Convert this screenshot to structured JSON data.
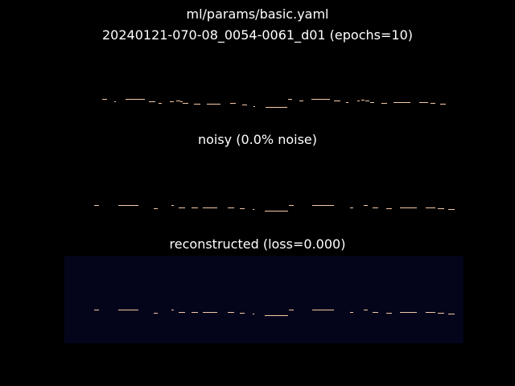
{
  "figure": {
    "title_line1": "ml/params/basic.yaml",
    "title_line2": "20240121-070-08_0054-0061_d01 (epochs=10)"
  },
  "colors": {
    "background": "#000000",
    "recon_panel_bg": "#04041a",
    "note_color": "#f4c9a8",
    "text": "#ffffff"
  },
  "panels": [
    {
      "id": "original",
      "title": ""
    },
    {
      "id": "noisy",
      "title": "noisy (0.0% noise)"
    },
    {
      "id": "reconstructed",
      "title": "reconstructed (loss=0.000)"
    }
  ],
  "chart_data": [
    {
      "type": "piano-roll",
      "title": "",
      "xlabel": "",
      "ylabel": "",
      "notes": [
        {
          "start": 47,
          "dur": 6,
          "pitch": 73
        },
        {
          "start": 62,
          "dur": 2,
          "pitch": 70
        },
        {
          "start": 76,
          "dur": 24,
          "pitch": 73
        },
        {
          "start": 105,
          "dur": 8,
          "pitch": 70
        },
        {
          "start": 117,
          "dur": 4,
          "pitch": 68
        },
        {
          "start": 131,
          "dur": 5,
          "pitch": 70
        },
        {
          "start": 139,
          "dur": 5,
          "pitch": 71
        },
        {
          "start": 144,
          "dur": 3,
          "pitch": 70
        },
        {
          "start": 147,
          "dur": 7,
          "pitch": 68
        },
        {
          "start": 161,
          "dur": 8,
          "pitch": 67
        },
        {
          "start": 177,
          "dur": 17,
          "pitch": 67
        },
        {
          "start": 206,
          "dur": 7,
          "pitch": 68
        },
        {
          "start": 221,
          "dur": 6,
          "pitch": 66
        },
        {
          "start": 235,
          "dur": 2,
          "pitch": 64
        },
        {
          "start": 250,
          "dur": 27,
          "pitch": 63
        },
        {
          "start": 278,
          "dur": 5,
          "pitch": 73
        },
        {
          "start": 292,
          "dur": 5,
          "pitch": 71
        },
        {
          "start": 307,
          "dur": 23,
          "pitch": 73
        },
        {
          "start": 335,
          "dur": 8,
          "pitch": 71
        },
        {
          "start": 350,
          "dur": 3,
          "pitch": 69
        },
        {
          "start": 364,
          "dur": 3,
          "pitch": 71
        },
        {
          "start": 369,
          "dur": 4,
          "pitch": 72
        },
        {
          "start": 374,
          "dur": 5,
          "pitch": 71
        },
        {
          "start": 380,
          "dur": 5,
          "pitch": 69
        },
        {
          "start": 394,
          "dur": 7,
          "pitch": 68
        },
        {
          "start": 409,
          "dur": 21,
          "pitch": 69
        },
        {
          "start": 441,
          "dur": 11,
          "pitch": 69
        },
        {
          "start": 455,
          "dur": 6,
          "pitch": 68
        },
        {
          "start": 467,
          "dur": 7,
          "pitch": 67
        }
      ]
    },
    {
      "type": "piano-roll",
      "title": "noisy (0.0% noise)",
      "xlabel": "",
      "ylabel": "",
      "notes": [
        {
          "start": 37,
          "dur": 6,
          "pitch": 73
        },
        {
          "start": 67,
          "dur": 25,
          "pitch": 73
        },
        {
          "start": 111,
          "dur": 5,
          "pitch": 69
        },
        {
          "start": 133,
          "dur": 3,
          "pitch": 73
        },
        {
          "start": 142,
          "dur": 8,
          "pitch": 70
        },
        {
          "start": 158,
          "dur": 8,
          "pitch": 70
        },
        {
          "start": 172,
          "dur": 18,
          "pitch": 70
        },
        {
          "start": 203,
          "dur": 8,
          "pitch": 70
        },
        {
          "start": 218,
          "dur": 6,
          "pitch": 69
        },
        {
          "start": 234,
          "dur": 2,
          "pitch": 68
        },
        {
          "start": 249,
          "dur": 29,
          "pitch": 66
        },
        {
          "start": 279,
          "dur": 6,
          "pitch": 73
        },
        {
          "start": 308,
          "dur": 27,
          "pitch": 73
        },
        {
          "start": 355,
          "dur": 4,
          "pitch": 70
        },
        {
          "start": 372,
          "dur": 5,
          "pitch": 73
        },
        {
          "start": 383,
          "dur": 7,
          "pitch": 70
        },
        {
          "start": 400,
          "dur": 7,
          "pitch": 69
        },
        {
          "start": 417,
          "dur": 21,
          "pitch": 70
        },
        {
          "start": 449,
          "dur": 12,
          "pitch": 70
        },
        {
          "start": 464,
          "dur": 8,
          "pitch": 69
        },
        {
          "start": 477,
          "dur": 8,
          "pitch": 68
        }
      ]
    },
    {
      "type": "piano-roll",
      "title": "reconstructed (loss=0.000)",
      "xlabel": "",
      "ylabel": "",
      "notes": [
        {
          "start": 37,
          "dur": 6,
          "pitch": 73
        },
        {
          "start": 67,
          "dur": 25,
          "pitch": 73
        },
        {
          "start": 111,
          "dur": 5,
          "pitch": 69
        },
        {
          "start": 133,
          "dur": 3,
          "pitch": 73
        },
        {
          "start": 142,
          "dur": 8,
          "pitch": 70
        },
        {
          "start": 158,
          "dur": 8,
          "pitch": 70
        },
        {
          "start": 172,
          "dur": 18,
          "pitch": 70
        },
        {
          "start": 203,
          "dur": 8,
          "pitch": 70
        },
        {
          "start": 218,
          "dur": 6,
          "pitch": 69
        },
        {
          "start": 234,
          "dur": 2,
          "pitch": 68
        },
        {
          "start": 249,
          "dur": 29,
          "pitch": 66
        },
        {
          "start": 279,
          "dur": 6,
          "pitch": 73
        },
        {
          "start": 308,
          "dur": 27,
          "pitch": 73
        },
        {
          "start": 355,
          "dur": 4,
          "pitch": 70
        },
        {
          "start": 372,
          "dur": 5,
          "pitch": 73
        },
        {
          "start": 383,
          "dur": 7,
          "pitch": 70
        },
        {
          "start": 400,
          "dur": 7,
          "pitch": 69
        },
        {
          "start": 417,
          "dur": 21,
          "pitch": 70
        },
        {
          "start": 449,
          "dur": 12,
          "pitch": 70
        },
        {
          "start": 464,
          "dur": 8,
          "pitch": 69
        },
        {
          "start": 477,
          "dur": 8,
          "pitch": 68
        }
      ]
    }
  ]
}
